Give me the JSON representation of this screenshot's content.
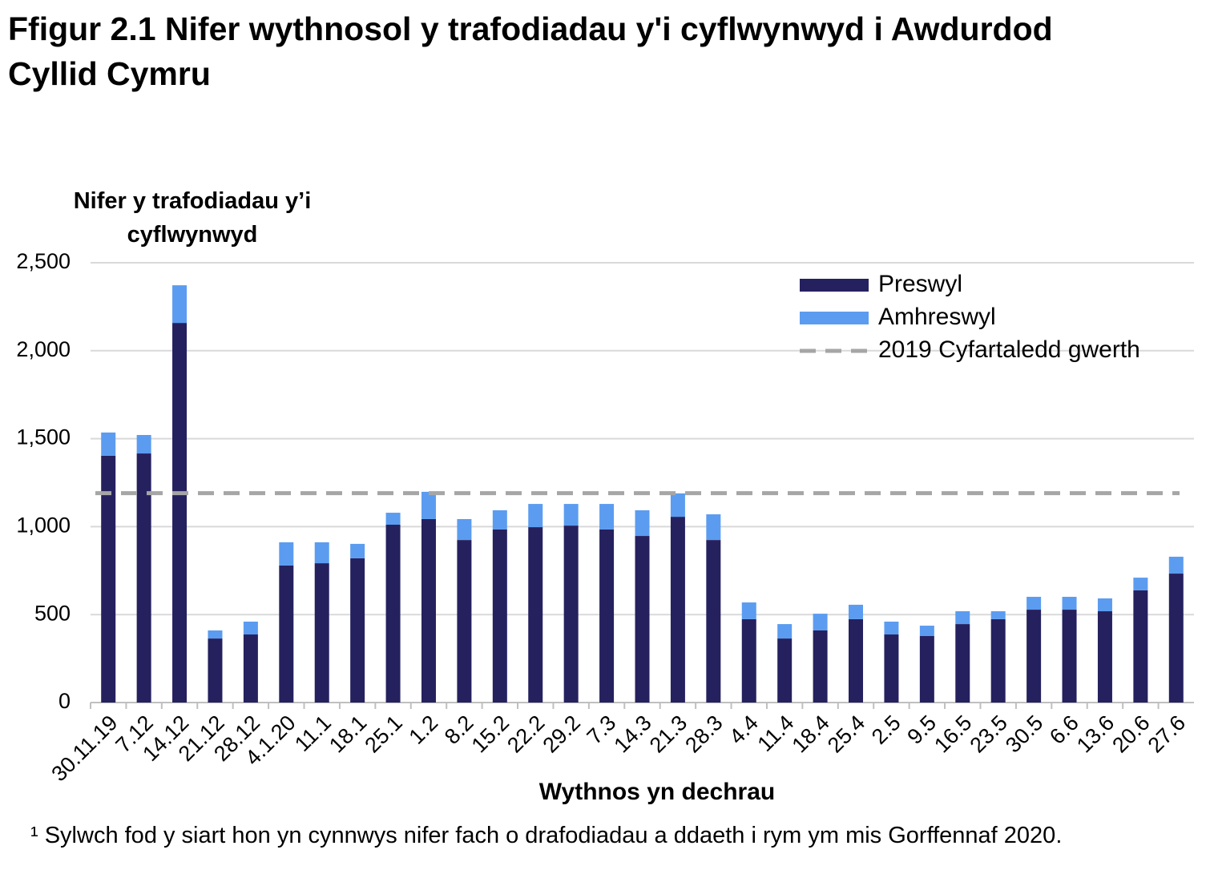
{
  "chart_data": {
    "type": "stacked_bar",
    "title": "Ffigur 2.1  Nifer wythnosol y trafodiadau y'i cyflwynwyd i Awdurdod Cyllid Cymru",
    "y_label": "Nifer y trafodiadau y’i cyflwynwyd",
    "x_label": "Wythnos yn dechrau",
    "footnote": "¹ Sylwch fod y siart hon yn cynnwys nifer fach o drafodiadau a ddaeth i rym ym mis Gorffennaf 2020.",
    "categories": [
      "30.11.19",
      "7.12",
      "14.12",
      "21.12",
      "28.12",
      "4.1.20",
      "11.1",
      "18.1",
      "25.1",
      "1.2",
      "8.2",
      "15.2",
      "22.2",
      "29.2",
      "7.3",
      "14.3",
      "21.3",
      "28.3",
      "4.4",
      "11.4",
      "18.4",
      "25.4",
      "2.5",
      "9.5",
      "16.5",
      "23.5",
      "30.5",
      "6.6",
      "13.6",
      "20.6",
      "27.6"
    ],
    "series": [
      {
        "name": "Preswyl",
        "color": "#25215f",
        "values": [
          1403,
          1416,
          2158,
          364,
          387,
          779,
          792,
          820,
          1011,
          1043,
          924,
          984,
          997,
          1006,
          984,
          947,
          1056,
          924,
          474,
          364,
          410,
          474,
          387,
          378,
          446,
          474,
          528,
          528,
          519,
          638,
          733
        ]
      },
      {
        "name": "Amhreswyl",
        "color": "#5b9cf0",
        "values": [
          132,
          105,
          214,
          46,
          73,
          132,
          119,
          82,
          68,
          155,
          119,
          109,
          132,
          123,
          145,
          146,
          133,
          146,
          95,
          82,
          95,
          82,
          73,
          59,
          73,
          45,
          73,
          73,
          73,
          72,
          96
        ]
      }
    ],
    "reference_line": {
      "name": "2019 Cyfartaledd gwerth",
      "value": 1190,
      "color": "#a6a6a6"
    },
    "ylim": [
      0,
      2500
    ],
    "yticks": [
      0,
      500,
      {
        "value": 1000,
        "label": "1,000"
      },
      {
        "value": 1500,
        "label": "1,500"
      },
      {
        "value": 2000,
        "label": "2,000"
      },
      {
        "value": 2500,
        "label": "2,500"
      }
    ],
    "grid": true
  }
}
